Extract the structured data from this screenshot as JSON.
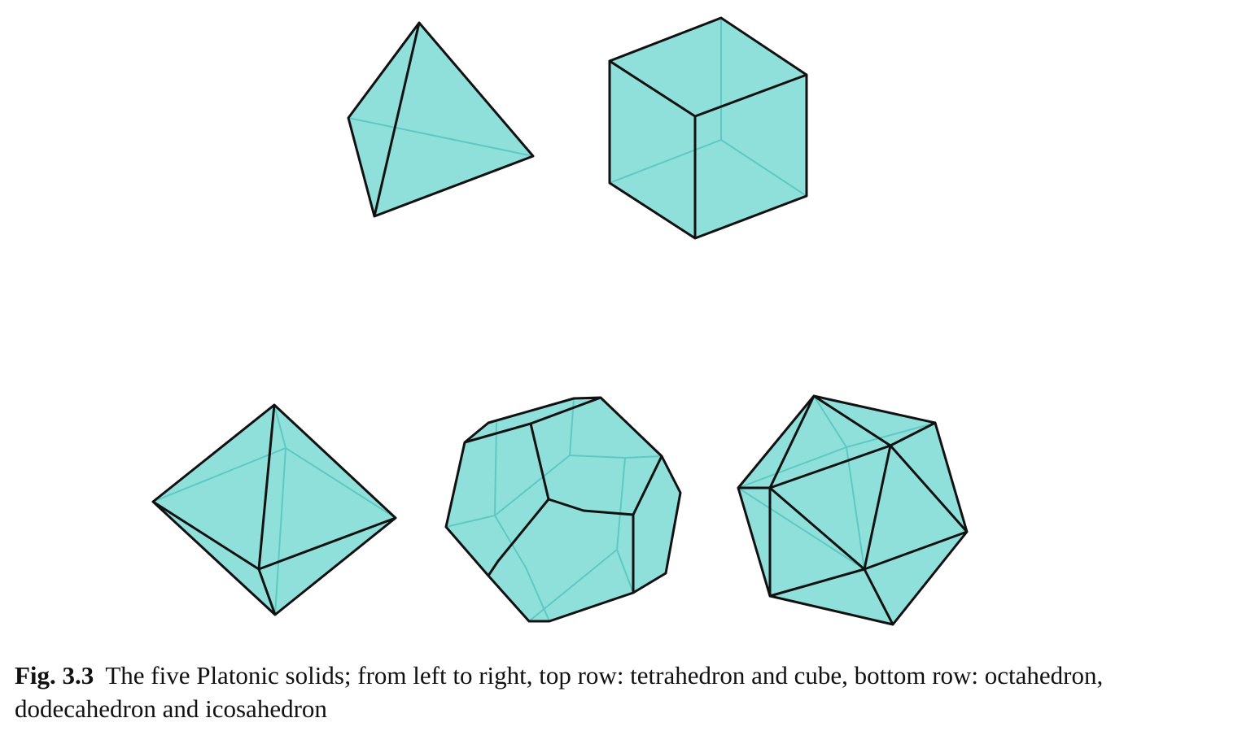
{
  "figure": {
    "fill_color": "#8fe0da",
    "hidden_edge_color": "#5ec9c2",
    "edge_color": "#111111"
  },
  "caption": {
    "label": "Fig. 3.3",
    "text": "The five Platonic solids; from left to right, top row: tetrahedron and cube, bottom row: octahedron, dodecahedron and icosahedron"
  }
}
